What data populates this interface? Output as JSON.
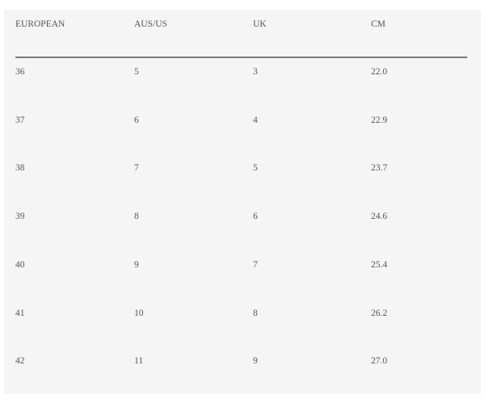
{
  "table": {
    "headers": [
      "EUROPEAN",
      "AUS/US",
      "UK",
      "CM"
    ],
    "rows": [
      [
        "36",
        "5",
        "3",
        "22.0"
      ],
      [
        "37",
        "6",
        "4",
        "22.9"
      ],
      [
        "38",
        "7",
        "5",
        "23.7"
      ],
      [
        "39",
        "8",
        "6",
        "24.6"
      ],
      [
        "40",
        "9",
        "7",
        "25.4"
      ],
      [
        "41",
        "10",
        "8",
        "26.2"
      ],
      [
        "42",
        "11",
        "9",
        "27.0"
      ]
    ]
  }
}
